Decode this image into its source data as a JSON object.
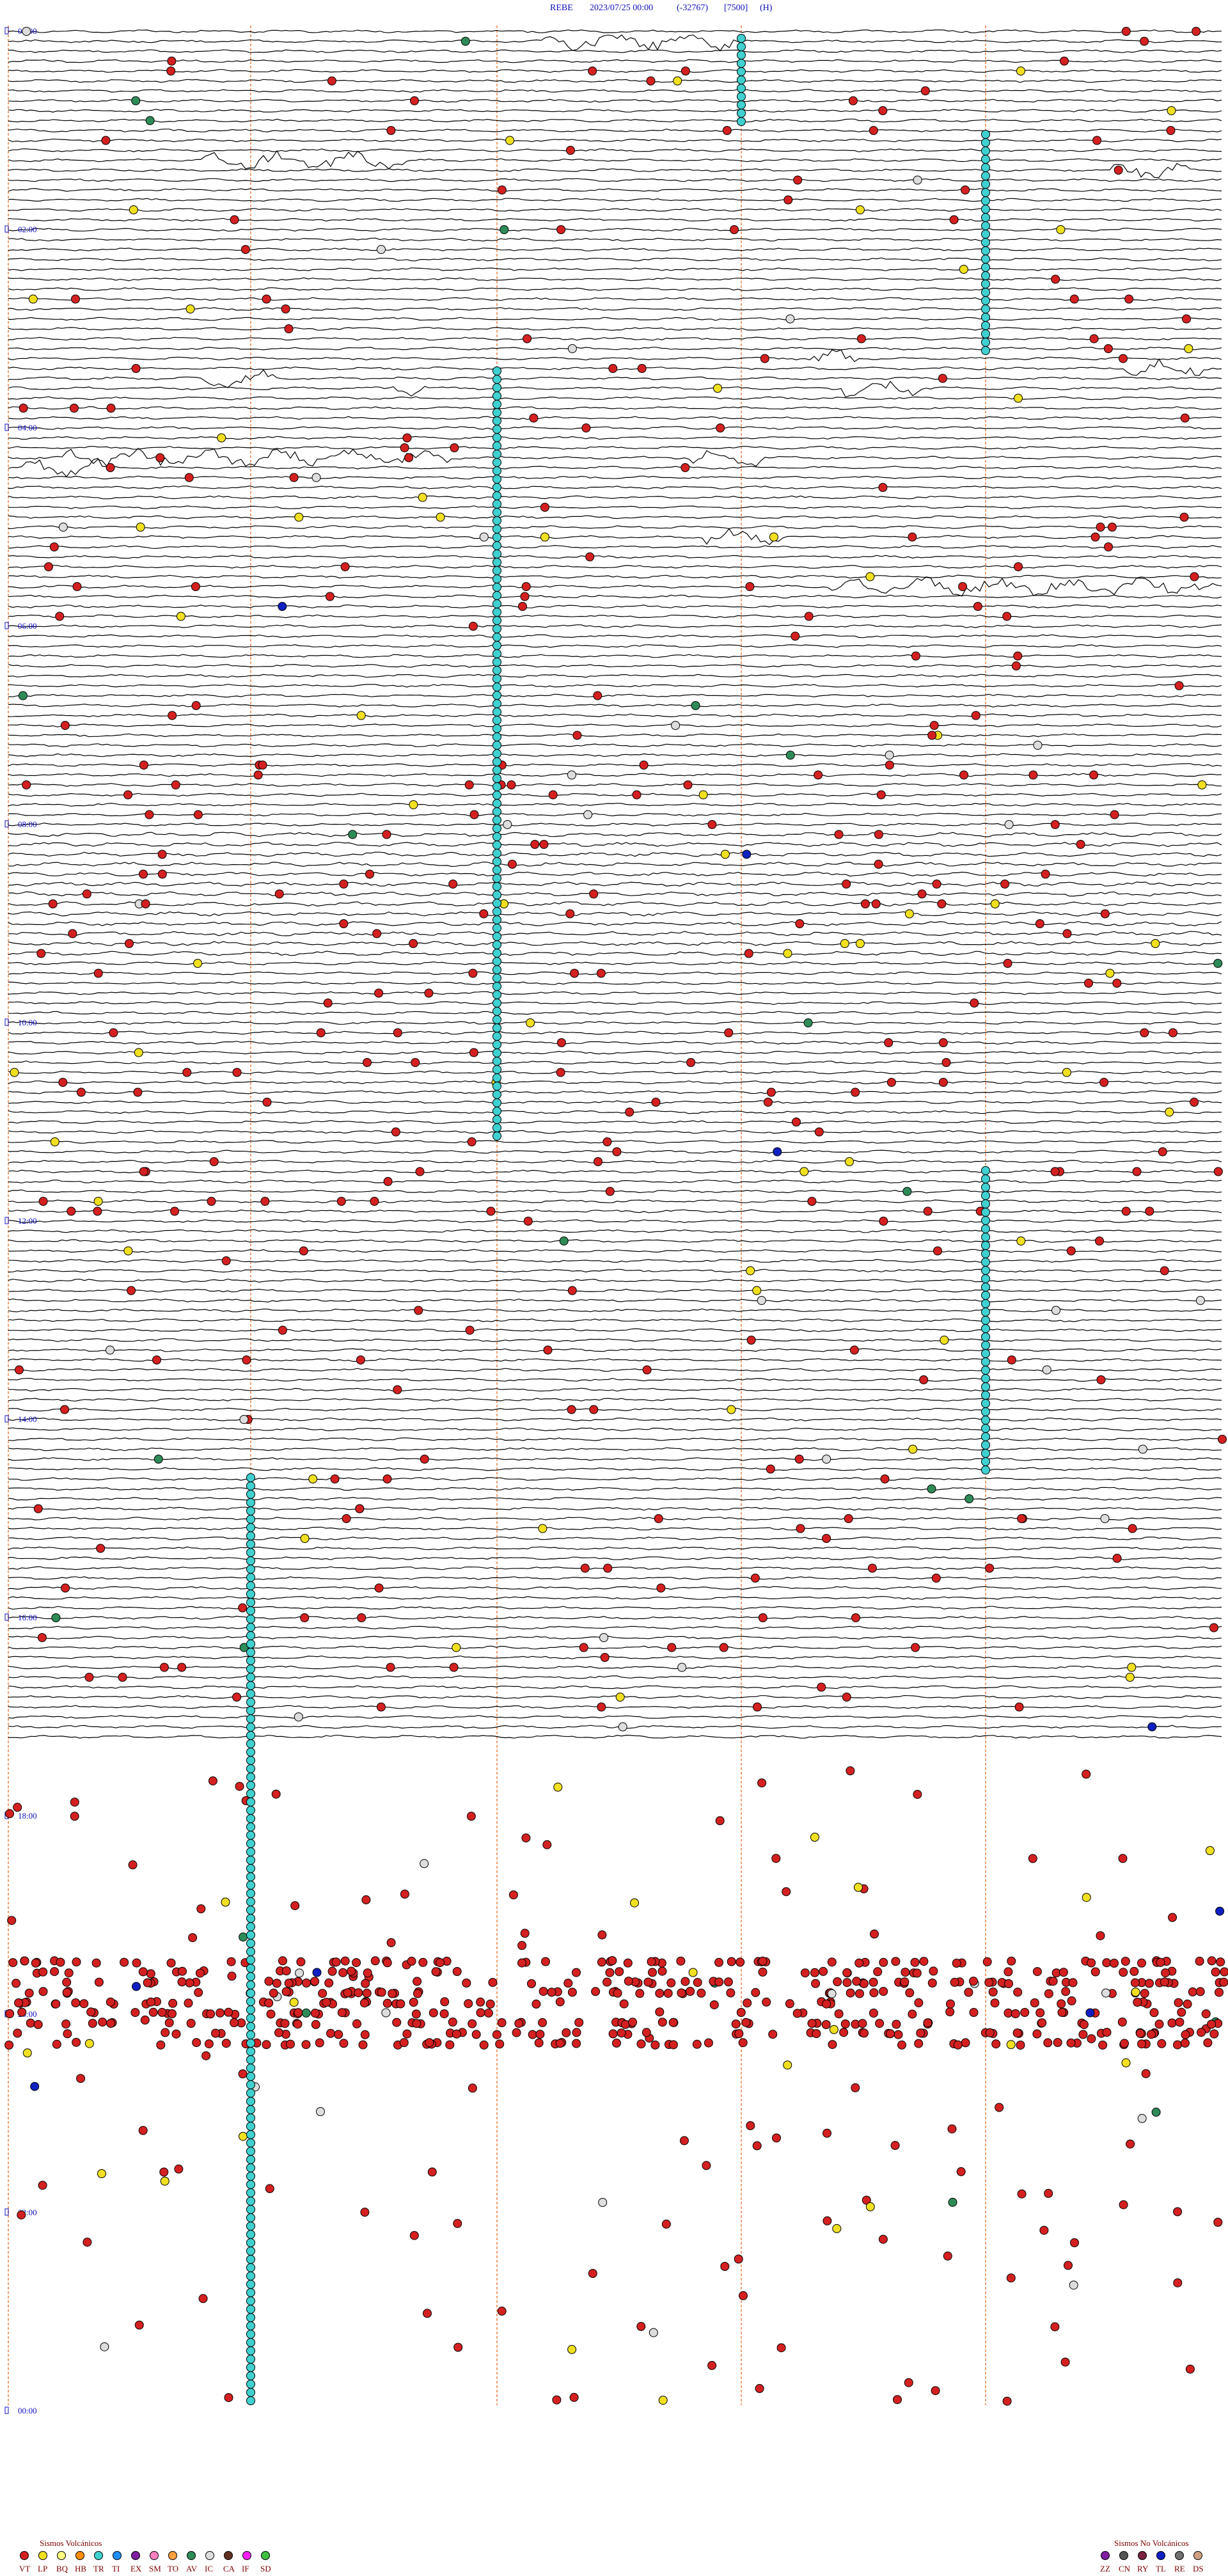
{
  "header": {
    "station": "REBE",
    "datetime": "2023/07/25 00:00",
    "code": "(-32767)",
    "scale": "[7500]",
    "component": "(H)"
  },
  "time_labels": [
    "00:00",
    "02:00",
    "04:00",
    "06:00",
    "08:00",
    "10:00",
    "12:00",
    "14:00",
    "16:00",
    "18:00",
    "20:00",
    "22:00",
    "00:00"
  ],
  "legend": {
    "volcanic": {
      "title": "Sismos Volcánicos",
      "items": [
        {
          "code": "VT",
          "color": "#d42020"
        },
        {
          "code": "LP",
          "color": "#f0e020"
        },
        {
          "code": "BQ",
          "color": "#ffff80"
        },
        {
          "code": "HB",
          "color": "#ff8c00"
        },
        {
          "code": "TR",
          "color": "#40d0d0"
        },
        {
          "code": "TI",
          "color": "#2090ff"
        },
        {
          "code": "EX",
          "color": "#8020a0"
        },
        {
          "code": "SM",
          "color": "#ff80c0"
        },
        {
          "code": "TO",
          "color": "#ffa040"
        },
        {
          "code": "AV",
          "color": "#2e8b57"
        },
        {
          "code": "IC",
          "color": "#dddddd"
        },
        {
          "code": "CA",
          "color": "#603020"
        },
        {
          "code": "IF",
          "color": "#ff20ff"
        },
        {
          "code": "SD",
          "color": "#40c040"
        }
      ]
    },
    "non_volcanic": {
      "title": "Sismos No Volcánicos",
      "items": [
        {
          "code": "ZZ",
          "color": "#8020a0"
        },
        {
          "code": "CN",
          "color": "#555555"
        },
        {
          "code": "RY",
          "color": "#7a2040"
        },
        {
          "code": "TL",
          "color": "#1020c0"
        },
        {
          "code": "RE",
          "color": "#707070"
        },
        {
          "code": "DS",
          "color": "#d0a080"
        }
      ]
    }
  }
}
